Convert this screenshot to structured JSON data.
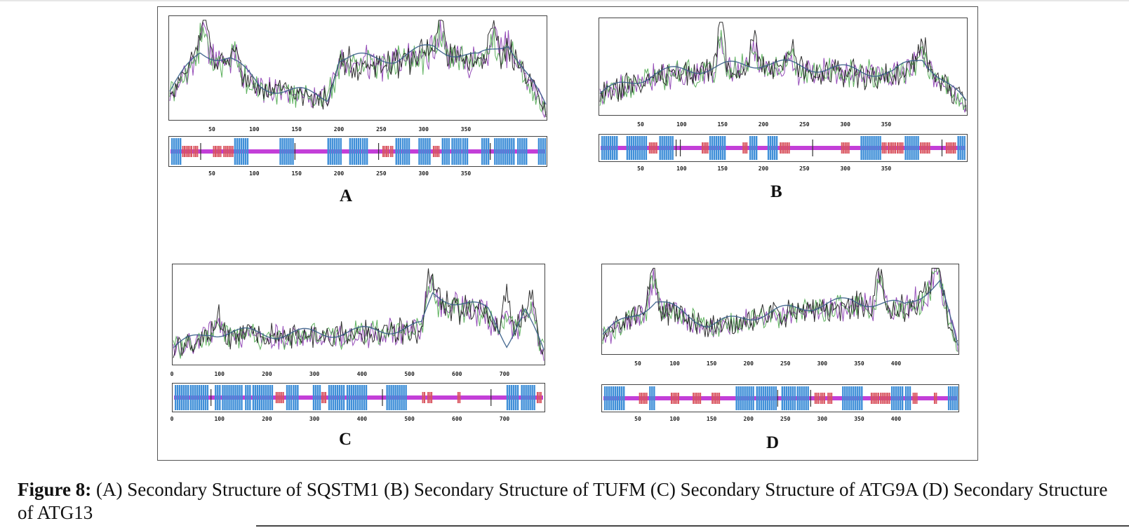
{
  "figure": {
    "panels": [
      {
        "id": "A",
        "letter": "A",
        "protein": "SQSTM1",
        "profile_ticks": [
          "50",
          "100",
          "150",
          "200",
          "250",
          "300",
          "350"
        ],
        "strip_ticks": [
          "50",
          "100",
          "150",
          "200",
          "250",
          "300",
          "350"
        ]
      },
      {
        "id": "B",
        "letter": "B",
        "protein": "TUFM",
        "profile_ticks": [
          "50",
          "100",
          "150",
          "200",
          "250",
          "300",
          "350"
        ],
        "strip_ticks": [
          "50",
          "100",
          "150",
          "200",
          "250",
          "300",
          "350"
        ]
      },
      {
        "id": "C",
        "letter": "C",
        "protein": "ATG9A",
        "profile_ticks": [
          "0",
          "100",
          "200",
          "300",
          "400",
          "500",
          "600",
          "700"
        ],
        "strip_ticks": [
          "0",
          "100",
          "200",
          "300",
          "400",
          "500",
          "600",
          "700"
        ]
      },
      {
        "id": "D",
        "letter": "D",
        "protein": "ATG13",
        "profile_ticks": [
          "50",
          "100",
          "150",
          "200",
          "250",
          "300",
          "350",
          "400"
        ],
        "strip_ticks": [
          "50",
          "100",
          "150",
          "200",
          "250",
          "300",
          "350",
          "400"
        ]
      }
    ],
    "colors": {
      "helix": "#3f8fd8",
      "strand": "#d9545f",
      "coil": "#c33fd8",
      "turn": "#d68aa8",
      "trace_black": "#1a1a1a",
      "trace_purple": "#8a3ab0",
      "trace_green": "#4faa4f",
      "trace_blue": "#3a5f8a"
    }
  },
  "caption": {
    "label": "Figure 8:",
    "text": "(A) Secondary Structure of SQSTM1 (B) Secondary Structure of TUFM (C) Secondary Structure of ATG9A (D) Secondary Structure of ATG13"
  }
}
